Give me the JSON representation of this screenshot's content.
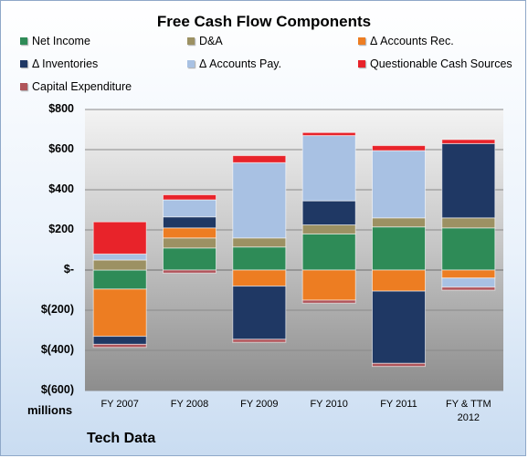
{
  "chart_data": {
    "type": "bar",
    "stacked": true,
    "title": "Free Cash Flow Components",
    "categories": [
      "FY 2007",
      "FY 2008",
      "FY 2009",
      "FY 2010",
      "FY 2011",
      "FY & TTM 2012"
    ],
    "category_lines": [
      [
        "FY 2007"
      ],
      [
        "FY 2008"
      ],
      [
        "FY 2009"
      ],
      [
        "FY 2010"
      ],
      [
        "FY 2011"
      ],
      [
        "FY & TTM",
        "2012"
      ]
    ],
    "units_label": "millions",
    "company_label": "Tech Data",
    "ylim": [
      -600,
      800
    ],
    "yticks": [
      {
        "value": 800,
        "label": "$800"
      },
      {
        "value": 600,
        "label": "$600"
      },
      {
        "value": 400,
        "label": "$400"
      },
      {
        "value": 200,
        "label": "$200"
      },
      {
        "value": 0,
        "label": "$-"
      },
      {
        "value": -200,
        "label": "$(200)"
      },
      {
        "value": -400,
        "label": "$(400)"
      },
      {
        "value": -600,
        "label": "$(600)"
      }
    ],
    "legend_position": "top",
    "series": [
      {
        "name": "Net Income",
        "color": "#2e8b57",
        "values": [
          -95,
          110,
          115,
          180,
          215,
          210
        ]
      },
      {
        "name": "D&A",
        "color": "#9c9163",
        "values": [
          50,
          50,
          45,
          45,
          45,
          50
        ]
      },
      {
        "name": "Δ Accounts Rec.",
        "color": "#ed7d22",
        "values": [
          -235,
          50,
          -80,
          -150,
          -105,
          -40
        ]
      },
      {
        "name": "Δ Inventories",
        "color": "#1f3864",
        "values": [
          -40,
          55,
          -265,
          120,
          -360,
          370
        ]
      },
      {
        "name": "Δ Accounts Pay.",
        "color": "#a8c1e3",
        "values": [
          30,
          85,
          375,
          325,
          335,
          -45
        ]
      },
      {
        "name": "Questionable Cash Sources",
        "color": "#e8232a",
        "values": [
          160,
          25,
          35,
          15,
          25,
          20
        ]
      },
      {
        "name": "Capital Expenditure",
        "color": "#b0545a",
        "values": [
          -15,
          -15,
          -15,
          -15,
          -15,
          -15
        ]
      }
    ]
  }
}
